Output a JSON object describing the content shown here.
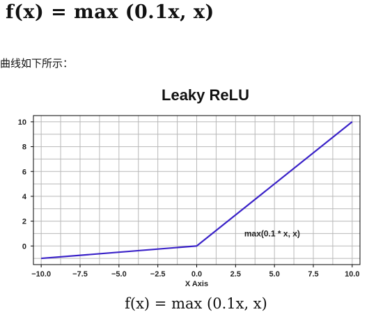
{
  "header": {
    "formula": "f(x) = max (0.1x, x)"
  },
  "caption": "曲线如下所示：",
  "footer": {
    "formula": "f(x) = max (0.1x, x)"
  },
  "chart_data": {
    "type": "line",
    "title": "Leaky ReLU",
    "xlabel": "X Axis",
    "ylabel": "",
    "xlim": [
      -10.5,
      10.5
    ],
    "ylim": [
      -1.5,
      10.5
    ],
    "xticks": [
      -10.0,
      -7.5,
      -5.0,
      -2.5,
      0.0,
      2.5,
      5.0,
      7.5,
      10.0
    ],
    "xtick_labels": [
      "−10.0",
      "−7.5",
      "−5.0",
      "−2.5",
      "0.0",
      "2.5",
      "5.0",
      "7.5",
      "10.0"
    ],
    "yticks": [
      0,
      2,
      4,
      6,
      8,
      10
    ],
    "ytick_labels": [
      "0",
      "2",
      "4",
      "6",
      "8",
      "10"
    ],
    "grid": true,
    "series": [
      {
        "name": "max(0.1 * x, x)",
        "color": "#3a22c8",
        "x": [
          -10,
          0,
          10
        ],
        "y": [
          -1,
          0,
          10
        ]
      }
    ],
    "annotation": {
      "text": "max(0.1 * x, x)",
      "x": 5.3,
      "y": 1.0
    }
  }
}
